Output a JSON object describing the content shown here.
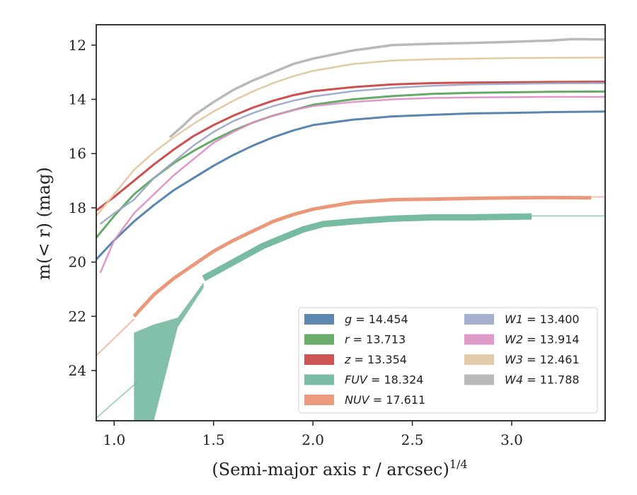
{
  "chart_data": {
    "type": "line",
    "xlabel": "(Semi-major axis r / arcsec)",
    "xlabel_sup": "1/4",
    "ylabel": "m(< r) (mag)",
    "xlim": [
      0.91,
      3.47
    ],
    "ylim": [
      25.85,
      11.25
    ],
    "y_inverted": true,
    "x_ticks": [
      1.0,
      1.5,
      2.0,
      2.5,
      3.0
    ],
    "x_tick_labels": [
      "1.0",
      "1.5",
      "2.0",
      "2.5",
      "3.0"
    ],
    "y_ticks": [
      12,
      14,
      16,
      18,
      20,
      22,
      24
    ],
    "y_tick_labels": [
      "12",
      "14",
      "16",
      "18",
      "20",
      "22",
      "24"
    ],
    "grid": false,
    "legend_position": "lower-right",
    "series": [
      {
        "name": "g",
        "legend": "g = 14.454",
        "color": "#4c7ba7",
        "width": 3,
        "x": [
          0.91,
          1.0,
          1.1,
          1.2,
          1.3,
          1.4,
          1.5,
          1.6,
          1.7,
          1.8,
          1.9,
          2.0,
          2.2,
          2.4,
          2.6,
          2.8,
          3.0,
          3.2,
          3.47
        ],
        "y": [
          19.9,
          19.2,
          18.5,
          17.9,
          17.35,
          16.9,
          16.45,
          16.05,
          15.7,
          15.4,
          15.15,
          14.95,
          14.75,
          14.63,
          14.57,
          14.52,
          14.5,
          14.47,
          14.45
        ]
      },
      {
        "name": "r",
        "legend": "r = 13.713",
        "color": "#5aa35a",
        "width": 3,
        "x": [
          0.91,
          1.0,
          1.1,
          1.2,
          1.3,
          1.4,
          1.5,
          1.6,
          1.7,
          1.8,
          1.9,
          2.0,
          2.2,
          2.4,
          2.6,
          2.8,
          3.0,
          3.2,
          3.47
        ],
        "y": [
          19.1,
          18.3,
          17.5,
          16.9,
          16.35,
          15.9,
          15.5,
          15.15,
          14.85,
          14.6,
          14.4,
          14.2,
          14.0,
          13.88,
          13.8,
          13.76,
          13.74,
          13.72,
          13.71
        ]
      },
      {
        "name": "z",
        "legend": "z = 13.354",
        "color": "#c94040",
        "width": 3,
        "x": [
          0.91,
          1.0,
          1.1,
          1.2,
          1.3,
          1.4,
          1.5,
          1.6,
          1.7,
          1.8,
          1.9,
          2.0,
          2.2,
          2.4,
          2.6,
          2.8,
          3.0,
          3.2,
          3.47
        ],
        "y": [
          18.1,
          17.6,
          17.0,
          16.4,
          15.85,
          15.35,
          14.95,
          14.6,
          14.3,
          14.05,
          13.85,
          13.7,
          13.55,
          13.45,
          13.4,
          13.38,
          13.37,
          13.36,
          13.35
        ]
      },
      {
        "name": "W1",
        "legend": "W1 = 13.400",
        "color": "#9aa7c8",
        "width": 2.5,
        "x": [
          0.93,
          1.0,
          1.1,
          1.2,
          1.3,
          1.4,
          1.5,
          1.6,
          1.7,
          1.8,
          1.9,
          2.0,
          2.2,
          2.4,
          2.6,
          2.8,
          3.0,
          3.2,
          3.47
        ],
        "y": [
          18.6,
          18.2,
          17.7,
          16.9,
          16.3,
          15.7,
          15.2,
          14.8,
          14.5,
          14.25,
          14.05,
          13.9,
          13.7,
          13.58,
          13.5,
          13.45,
          13.43,
          13.41,
          13.4
        ]
      },
      {
        "name": "W2",
        "legend": "W2 = 13.914",
        "color": "#dc8fc4",
        "width": 2.5,
        "x": [
          0.93,
          1.0,
          1.1,
          1.2,
          1.3,
          1.4,
          1.5,
          1.6,
          1.7,
          1.8,
          1.9,
          2.0,
          2.2,
          2.4,
          2.6,
          2.8,
          3.0,
          3.2,
          3.47
        ],
        "y": [
          20.4,
          19.2,
          18.2,
          17.5,
          16.8,
          16.2,
          15.6,
          15.2,
          14.85,
          14.6,
          14.4,
          14.25,
          14.1,
          14.0,
          13.95,
          13.93,
          13.92,
          13.91,
          13.91
        ]
      },
      {
        "name": "W3",
        "legend": "W3 = 12.461",
        "color": "#dfc59e",
        "width": 2.5,
        "x": [
          0.91,
          1.0,
          1.1,
          1.2,
          1.3,
          1.4,
          1.5,
          1.6,
          1.7,
          1.8,
          1.9,
          2.0,
          2.2,
          2.4,
          2.6,
          2.8,
          3.0,
          3.2,
          3.47
        ],
        "y": [
          18.3,
          17.5,
          16.6,
          15.95,
          15.4,
          14.9,
          14.45,
          14.05,
          13.7,
          13.4,
          13.15,
          12.95,
          12.7,
          12.57,
          12.52,
          12.5,
          12.48,
          12.47,
          12.46
        ]
      },
      {
        "name": "W4",
        "legend": "W4 = 11.788",
        "color": "#b3b3b3",
        "width": 3.5,
        "x": [
          1.28,
          1.35,
          1.4,
          1.5,
          1.6,
          1.7,
          1.8,
          1.9,
          2.0,
          2.2,
          2.4,
          2.6,
          2.8,
          3.0,
          3.2,
          3.3,
          3.47
        ],
        "y": [
          15.4,
          14.95,
          14.6,
          14.1,
          13.65,
          13.3,
          13.0,
          12.7,
          12.5,
          12.2,
          12.0,
          11.95,
          11.92,
          11.88,
          11.83,
          11.78,
          11.79
        ]
      },
      {
        "name": "NUV",
        "legend": "NUV = 17.611",
        "color": "#e98f6f",
        "width": 5,
        "x": [
          1.1,
          1.2,
          1.3,
          1.4,
          1.5,
          1.6,
          1.7,
          1.8,
          1.9,
          2.0,
          2.2,
          2.4,
          2.6,
          2.8,
          3.0,
          3.2,
          3.4
        ],
        "y": [
          22.0,
          21.2,
          20.6,
          20.1,
          19.6,
          19.2,
          18.85,
          18.5,
          18.25,
          18.05,
          17.8,
          17.7,
          17.68,
          17.65,
          17.63,
          17.62,
          17.63
        ]
      },
      {
        "name": "FUV",
        "legend": "FUV = 18.324",
        "color": "#6db59b",
        "width": 9,
        "x": [
          1.45,
          1.55,
          1.65,
          1.75,
          1.85,
          1.95,
          2.05,
          2.2,
          2.4,
          2.6,
          2.8,
          3.0,
          3.1
        ],
        "y": [
          20.6,
          20.2,
          19.8,
          19.4,
          19.1,
          18.8,
          18.6,
          18.5,
          18.4,
          18.35,
          18.35,
          18.33,
          18.32
        ]
      }
    ],
    "fuv_band": {
      "x": [
        1.1,
        1.2,
        1.32,
        1.45
      ],
      "y_upper": [
        22.6,
        22.3,
        22.05,
        20.75
      ],
      "y_lower": [
        25.85,
        25.85,
        22.4,
        20.95
      ],
      "color": "#6db59b"
    },
    "extrapolations": [
      {
        "name": "NUV-extrapolation",
        "color": "#e98f6f",
        "x": [
          0.91,
          1.1
        ],
        "y": [
          23.45,
          22.1
        ]
      },
      {
        "name": "FUV-extrapolation",
        "color": "#6db59b",
        "x": [
          0.91,
          1.12
        ],
        "y": [
          25.75,
          24.4
        ]
      },
      {
        "name": "NUV-asymptote",
        "color": "#e98f6f",
        "x": [
          3.4,
          3.47
        ],
        "y": [
          17.6,
          17.6
        ]
      },
      {
        "name": "FUV-asymptote",
        "color": "#6db59b",
        "x": [
          3.1,
          3.47
        ],
        "y": [
          18.3,
          18.3
        ]
      }
    ],
    "legend": {
      "left_column": [
        {
          "label": "g",
          "value": "= 14.454",
          "color": "#4c7ba7"
        },
        {
          "label": "r",
          "value": "= 13.713",
          "color": "#5aa35a"
        },
        {
          "label": "z",
          "value": "= 13.354",
          "color": "#c94040"
        },
        {
          "label": "FUV",
          "value": "= 18.324",
          "color": "#6db59b"
        },
        {
          "label": "NUV",
          "value": "= 17.611",
          "color": "#e98f6f"
        }
      ],
      "right_column": [
        {
          "label": "W1",
          "value": "= 13.400",
          "color": "#9aa7c8"
        },
        {
          "label": "W2",
          "value": "= 13.914",
          "color": "#dc8fc4"
        },
        {
          "label": "W3",
          "value": "= 12.461",
          "color": "#dfc59e"
        },
        {
          "label": "W4",
          "value": "= 11.788",
          "color": "#b3b3b3"
        }
      ]
    }
  }
}
